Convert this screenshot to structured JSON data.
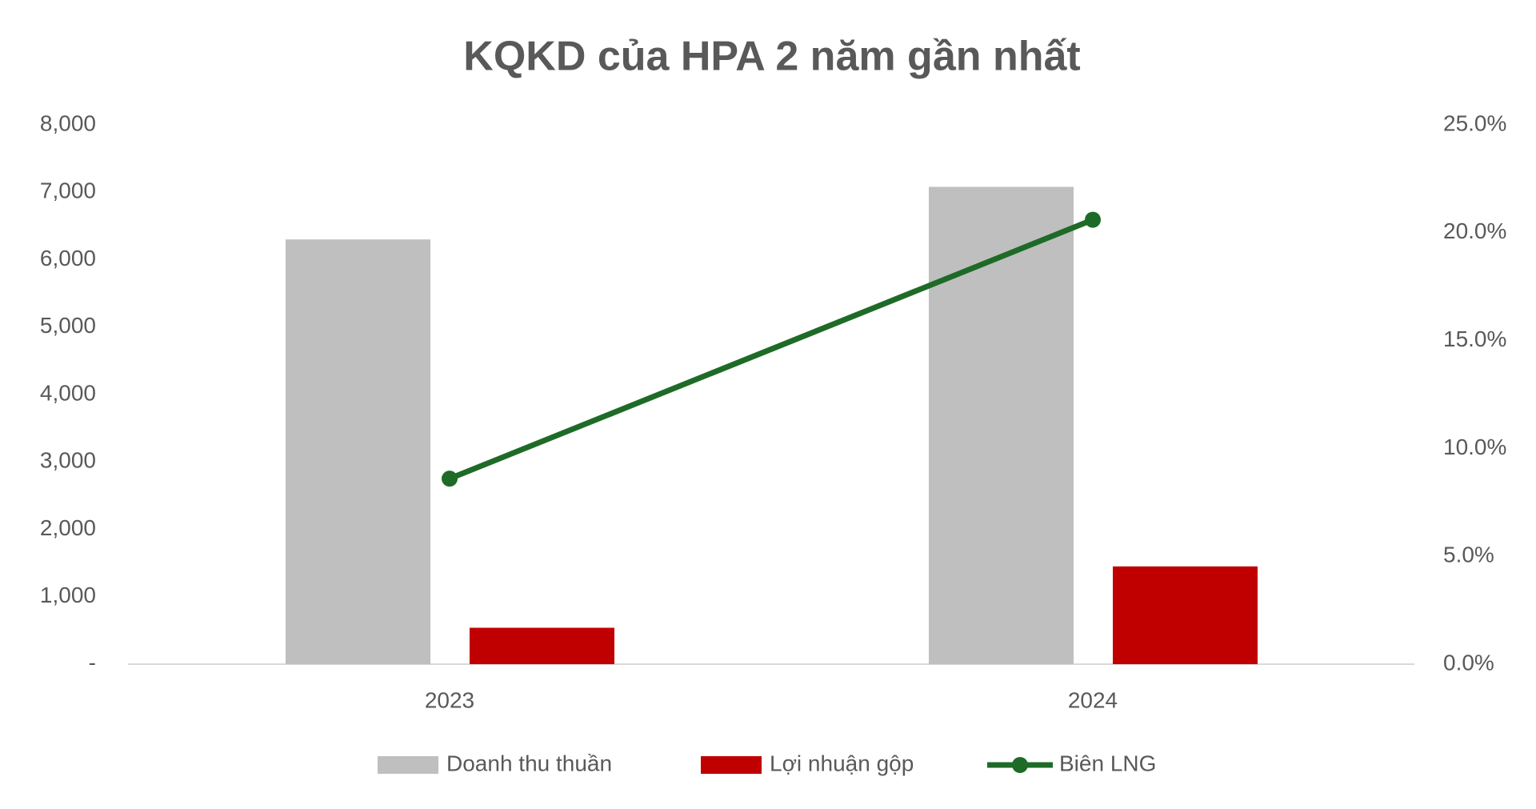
{
  "chart_data": {
    "type": "bar-line",
    "title": "KQKD của HPA 2 năm gần nhất",
    "categories": [
      "2023",
      "2024"
    ],
    "series": [
      {
        "name": "Doanh thu thuần",
        "color": "#bfbfbf",
        "type": "bar",
        "values": [
          6300,
          7080
        ]
      },
      {
        "name": "Lợi nhuận gộp",
        "color": "#c00000",
        "type": "bar",
        "values": [
          540,
          1450
        ]
      },
      {
        "name": "Biên LNG",
        "color": "#1e6b27",
        "type": "line",
        "axis": "y2",
        "values": [
          8.6,
          20.6
        ]
      }
    ],
    "ylim": [
      0,
      8000
    ],
    "yticks": [
      {
        "value": 0,
        "label": "-"
      },
      {
        "value": 1000,
        "label": "1,000"
      },
      {
        "value": 2000,
        "label": "2,000"
      },
      {
        "value": 3000,
        "label": "3,000"
      },
      {
        "value": 4000,
        "label": "4,000"
      },
      {
        "value": 5000,
        "label": "5,000"
      },
      {
        "value": 6000,
        "label": "6,000"
      },
      {
        "value": 7000,
        "label": "7,000"
      },
      {
        "value": 8000,
        "label": "8,000"
      }
    ],
    "y2lim": [
      0,
      25
    ],
    "y2ticks": [
      {
        "value": 0,
        "label": "0.0%"
      },
      {
        "value": 5,
        "label": "5.0%"
      },
      {
        "value": 10,
        "label": "10.0%"
      },
      {
        "value": 15,
        "label": "15.0%"
      },
      {
        "value": 20,
        "label": "20.0%"
      },
      {
        "value": 25,
        "label": "25.0%"
      }
    ],
    "legend": "bottom"
  }
}
